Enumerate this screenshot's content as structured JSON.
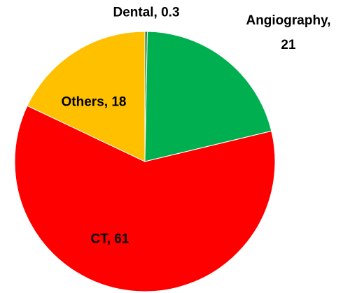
{
  "chart_data": {
    "type": "pie",
    "values": [
      0.3,
      21,
      61,
      18
    ],
    "value_labels": [
      "Dental, 0.3",
      "Angiography, 21",
      "CT, 61",
      "Others, 18"
    ],
    "colors": [
      "#1e7b3c",
      "#00b050",
      "#ff0000",
      "#ffc000"
    ]
  }
}
